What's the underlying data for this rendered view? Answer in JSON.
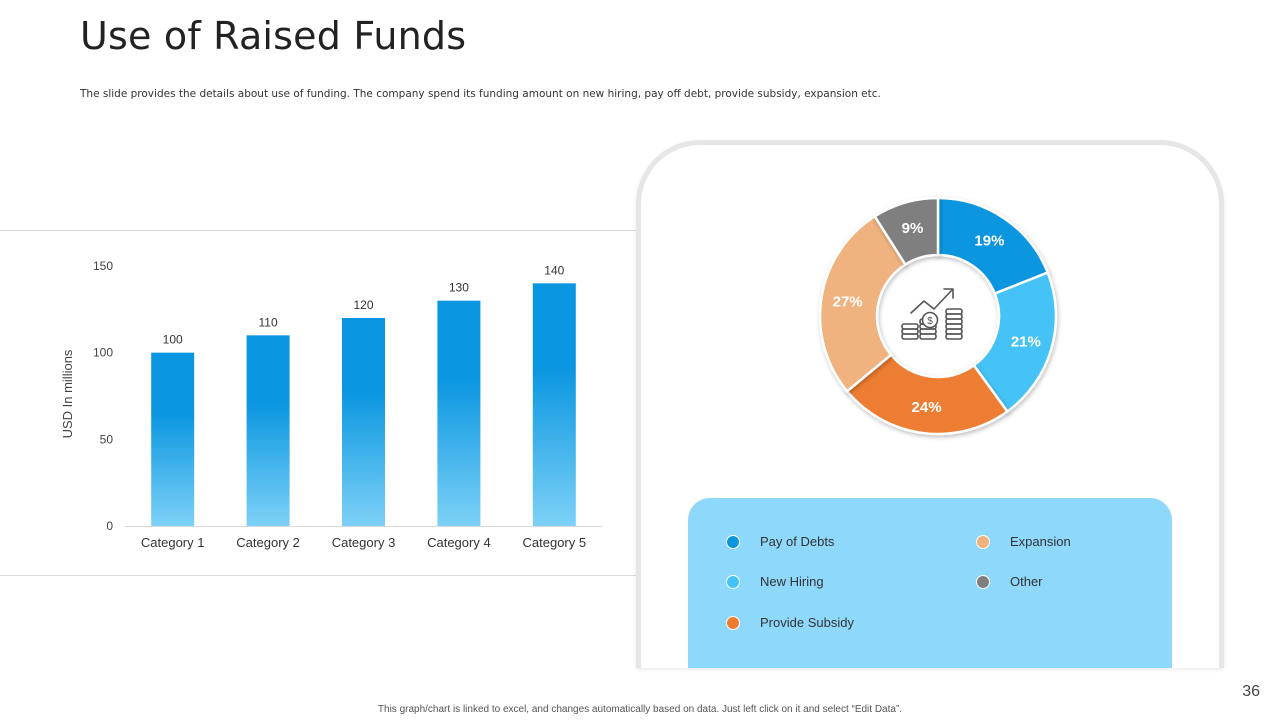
{
  "page": {
    "title": "Use of Raised Funds",
    "subtitle": "The slide provides the details about use of funding. The company spend its funding amount on new hiring, pay off debt, provide subsidy, expansion etc.",
    "footer_note": "This graph/chart is linked to excel,  and changes automatically based on data. Just left click on it and select “Edit Data”.",
    "page_number": "36"
  },
  "chart_data": [
    {
      "type": "bar",
      "categories": [
        "Category 1",
        "Category 2",
        "Category 3",
        "Category 4",
        "Category 5"
      ],
      "values": [
        100,
        110,
        120,
        130,
        140
      ],
      "data_labels": [
        "100",
        "110",
        "120",
        "130",
        "140"
      ],
      "ylabel": "USD In millions",
      "ylim": [
        0,
        150
      ],
      "yticks": [
        0,
        50,
        100,
        150
      ],
      "grid": false,
      "bar_color_top": "#0a96e0",
      "bar_color_bottom": "#7dd1f7"
    },
    {
      "type": "pie",
      "donut": true,
      "center_icon": "money-growth-icon",
      "slices": [
        {
          "name": "Pay of Debts",
          "value": 19,
          "label": "19%",
          "color": "#0a96e0"
        },
        {
          "name": "New Hiring",
          "value": 21,
          "label": "21%",
          "color": "#45c3f6"
        },
        {
          "name": "Provide  Subsidy",
          "value": 24,
          "label": "24%",
          "color": "#ed7d31"
        },
        {
          "name": "Expansion",
          "value": 27,
          "label": "27%",
          "color": "#f0b27f"
        },
        {
          "name": "Other",
          "value": 9,
          "label": "9%",
          "color": "#7f7f7f"
        }
      ],
      "legend_placement": "bottom"
    }
  ]
}
